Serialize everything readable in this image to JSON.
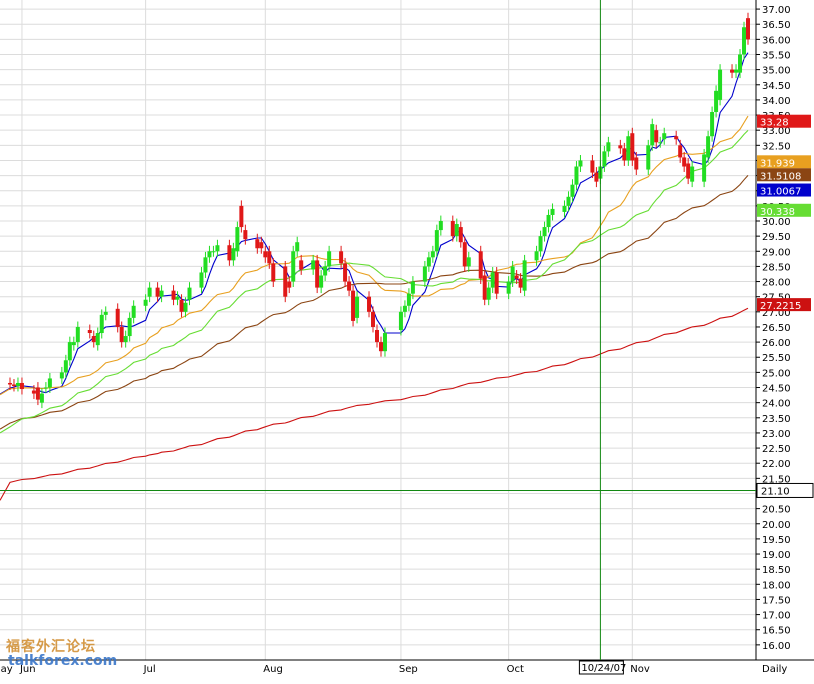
{
  "chart_data": {
    "type": "candlestick",
    "interval_label": "Daily",
    "y_axis": {
      "min": 15.5,
      "max": 37.3,
      "ticks": [
        "16.00",
        "16.50",
        "17.00",
        "17.50",
        "18.00",
        "18.50",
        "19.00",
        "19.50",
        "20.00",
        "20.50",
        "21.00",
        "21.50",
        "22.00",
        "22.50",
        "23.00",
        "23.50",
        "24.00",
        "24.50",
        "25.00",
        "25.50",
        "26.00",
        "26.50",
        "27.00",
        "27.50",
        "28.00",
        "28.50",
        "29.00",
        "29.50",
        "30.00",
        "30.50",
        "31.00",
        "31.50",
        "32.00",
        "32.50",
        "33.00",
        "33.50",
        "34.00",
        "34.50",
        "35.00",
        "35.50",
        "36.00",
        "36.50",
        "37.00"
      ]
    },
    "x_axis": {
      "start": "2007-05-28",
      "end": "2007-11-30",
      "labels": [
        {
          "text": "May",
          "date": "2007-05-25"
        },
        {
          "text": "Jun",
          "date": "2007-06-01"
        },
        {
          "text": "Jul",
          "date": "2007-07-02"
        },
        {
          "text": "Aug",
          "date": "2007-08-01"
        },
        {
          "text": "Sep",
          "date": "2007-09-04"
        },
        {
          "text": "Oct",
          "date": "2007-10-01"
        },
        {
          "text": "Nov",
          "date": "2007-11-01"
        }
      ]
    },
    "grid": true,
    "up_color": "#22dd22",
    "down_color": "#e01818",
    "crosshair": {
      "date": "2007-10-24",
      "date_label": "10/24/07",
      "price": 21.1,
      "price_label": "21.10",
      "color": "#118811"
    },
    "candles": [
      [
        "2007-05-29",
        24.65,
        24.6
      ],
      [
        "2007-05-30",
        24.6,
        24.55
      ],
      [
        "2007-05-31",
        24.55,
        24.65
      ],
      [
        "2007-06-01",
        24.65,
        24.45
      ],
      [
        "2007-06-04",
        24.4,
        24.3
      ],
      [
        "2007-06-05",
        24.5,
        24.1
      ],
      [
        "2007-06-06",
        24.0,
        24.3
      ],
      [
        "2007-06-07",
        24.5,
        24.5
      ],
      [
        "2007-06-08",
        24.5,
        24.8
      ],
      [
        "2007-06-11",
        24.8,
        25.0
      ],
      [
        "2007-06-12",
        25.0,
        25.4
      ],
      [
        "2007-06-13",
        25.4,
        26.0
      ],
      [
        "2007-06-14",
        25.9,
        26.0
      ],
      [
        "2007-06-15",
        26.0,
        26.5
      ],
      [
        "2007-06-18",
        26.4,
        26.3
      ],
      [
        "2007-06-19",
        26.2,
        26.0
      ],
      [
        "2007-06-20",
        25.9,
        26.3
      ],
      [
        "2007-06-21",
        26.3,
        26.9
      ],
      [
        "2007-06-22",
        26.9,
        27.0
      ],
      [
        "2007-06-25",
        27.1,
        26.5
      ],
      [
        "2007-06-26",
        26.5,
        26.0
      ],
      [
        "2007-06-27",
        26.0,
        26.2
      ],
      [
        "2007-06-28",
        26.2,
        26.8
      ],
      [
        "2007-06-29",
        26.8,
        27.2
      ],
      [
        "2007-07-02",
        27.2,
        27.4
      ],
      [
        "2007-07-03",
        27.5,
        27.8
      ],
      [
        "2007-07-05",
        27.8,
        27.5
      ],
      [
        "2007-07-06",
        27.5,
        27.7
      ],
      [
        "2007-07-09",
        27.7,
        27.4
      ],
      [
        "2007-07-10",
        27.4,
        27.5
      ],
      [
        "2007-07-11",
        27.4,
        27.0
      ],
      [
        "2007-07-12",
        27.0,
        27.3
      ],
      [
        "2007-07-13",
        27.4,
        27.8
      ],
      [
        "2007-07-16",
        27.8,
        28.3
      ],
      [
        "2007-07-17",
        28.3,
        28.8
      ],
      [
        "2007-07-18",
        28.8,
        29.0
      ],
      [
        "2007-07-19",
        29.0,
        29.0
      ],
      [
        "2007-07-20",
        29.0,
        29.2
      ],
      [
        "2007-07-23",
        29.2,
        28.7
      ],
      [
        "2007-07-24",
        28.7,
        29.1
      ],
      [
        "2007-07-25",
        29.0,
        29.8
      ],
      [
        "2007-07-26",
        30.5,
        29.8
      ],
      [
        "2007-07-27",
        29.7,
        29.4
      ],
      [
        "2007-07-30",
        29.4,
        29.1
      ],
      [
        "2007-07-31",
        29.3,
        29.1
      ],
      [
        "2007-08-01",
        29.0,
        28.8
      ],
      [
        "2007-08-02",
        29.0,
        28.6
      ],
      [
        "2007-08-03",
        28.6,
        28.0
      ],
      [
        "2007-08-06",
        28.5,
        27.5
      ],
      [
        "2007-08-07",
        28.0,
        27.8
      ],
      [
        "2007-08-08",
        28.0,
        29.0
      ],
      [
        "2007-08-09",
        29.0,
        29.3
      ],
      [
        "2007-08-10",
        28.7,
        28.4
      ],
      [
        "2007-08-13",
        28.4,
        28.7
      ],
      [
        "2007-08-14",
        28.7,
        27.8
      ],
      [
        "2007-08-15",
        27.8,
        28.2
      ],
      [
        "2007-08-16",
        28.2,
        28.5
      ],
      [
        "2007-08-17",
        28.5,
        29.0
      ],
      [
        "2007-08-20",
        29.0,
        28.6
      ],
      [
        "2007-08-21",
        28.6,
        28.0
      ],
      [
        "2007-08-22",
        28.0,
        27.7
      ],
      [
        "2007-08-23",
        27.7,
        26.7
      ],
      [
        "2007-08-24",
        26.8,
        27.5
      ],
      [
        "2007-08-27",
        27.5,
        27.0
      ],
      [
        "2007-08-28",
        27.0,
        26.5
      ],
      [
        "2007-08-29",
        26.4,
        26.0
      ],
      [
        "2007-08-30",
        26.0,
        25.7
      ],
      [
        "2007-08-31",
        25.7,
        26.3
      ],
      [
        "2007-09-04",
        26.4,
        27.0
      ],
      [
        "2007-09-05",
        27.0,
        27.2
      ],
      [
        "2007-09-06",
        27.2,
        27.6
      ],
      [
        "2007-09-07",
        27.6,
        28.0
      ],
      [
        "2007-09-10",
        28.0,
        28.5
      ],
      [
        "2007-09-11",
        28.5,
        28.8
      ],
      [
        "2007-09-12",
        28.8,
        29.0
      ],
      [
        "2007-09-13",
        29.0,
        29.7
      ],
      [
        "2007-09-14",
        29.7,
        30.0
      ],
      [
        "2007-09-17",
        30.0,
        29.5
      ],
      [
        "2007-09-18",
        29.5,
        29.9
      ],
      [
        "2007-09-19",
        29.8,
        29.3
      ],
      [
        "2007-09-20",
        29.3,
        28.5
      ],
      [
        "2007-09-21",
        28.5,
        28.8
      ],
      [
        "2007-09-24",
        29.0,
        28.1
      ],
      [
        "2007-09-25",
        28.2,
        27.4
      ],
      [
        "2007-09-26",
        27.4,
        27.8
      ],
      [
        "2007-09-27",
        27.8,
        28.3
      ],
      [
        "2007-09-28",
        28.3,
        27.6
      ],
      [
        "2007-10-01",
        27.6,
        28.0
      ],
      [
        "2007-10-02",
        28.0,
        28.5
      ],
      [
        "2007-10-03",
        28.2,
        28.1
      ],
      [
        "2007-10-04",
        28.1,
        27.8
      ],
      [
        "2007-10-05",
        27.7,
        28.7
      ],
      [
        "2007-10-08",
        28.7,
        29.0
      ],
      [
        "2007-10-09",
        29.0,
        29.5
      ],
      [
        "2007-10-10",
        29.5,
        29.8
      ],
      [
        "2007-10-11",
        29.8,
        30.2
      ],
      [
        "2007-10-12",
        30.2,
        30.4
      ],
      [
        "2007-10-15",
        30.3,
        30.5
      ],
      [
        "2007-10-16",
        30.5,
        30.8
      ],
      [
        "2007-10-17",
        30.8,
        31.2
      ],
      [
        "2007-10-18",
        31.2,
        31.8
      ],
      [
        "2007-10-19",
        31.8,
        32.0
      ],
      [
        "2007-10-22",
        32.0,
        31.6
      ],
      [
        "2007-10-23",
        31.6,
        31.3
      ],
      [
        "2007-10-24",
        31.4,
        31.8
      ],
      [
        "2007-10-25",
        31.8,
        32.3
      ],
      [
        "2007-10-26",
        32.3,
        32.6
      ],
      [
        "2007-10-29",
        32.5,
        32.4
      ],
      [
        "2007-10-30",
        32.4,
        32.0
      ],
      [
        "2007-10-31",
        32.0,
        32.8
      ],
      [
        "2007-11-01",
        32.9,
        32.0
      ],
      [
        "2007-11-02",
        32.1,
        31.7
      ],
      [
        "2007-11-05",
        31.7,
        32.5
      ],
      [
        "2007-11-06",
        32.5,
        33.2
      ],
      [
        "2007-11-07",
        33.0,
        32.6
      ],
      [
        "2007-11-08",
        32.6,
        32.6
      ],
      [
        "2007-11-09",
        32.7,
        32.9
      ],
      [
        "2007-11-12",
        32.8,
        32.7
      ],
      [
        "2007-11-13",
        32.5,
        32.1
      ],
      [
        "2007-11-14",
        32.1,
        31.8
      ],
      [
        "2007-11-15",
        31.9,
        31.4
      ],
      [
        "2007-11-16",
        31.3,
        31.8
      ],
      [
        "2007-11-19",
        31.3,
        32.2
      ],
      [
        "2007-11-20",
        32.1,
        32.8
      ],
      [
        "2007-11-21",
        32.8,
        33.6
      ],
      [
        "2007-11-22",
        33.6,
        34.3
      ],
      [
        "2007-11-23",
        34.0,
        35.0
      ],
      [
        "2007-11-26",
        35.0,
        34.9
      ],
      [
        "2007-11-27",
        34.9,
        35.0
      ],
      [
        "2007-11-28",
        34.9,
        35.5
      ],
      [
        "2007-11-29",
        35.5,
        36.4
      ],
      [
        "2007-11-30",
        36.7,
        36.0
      ]
    ],
    "moving_averages": [
      {
        "color": "#0000cc",
        "value": 31.0067,
        "label": "31.0067"
      },
      {
        "color": "#e8a020",
        "value": 31.939,
        "label": "31.939"
      },
      {
        "color": "#8b4513",
        "value": 31.5108,
        "label": "31.5108"
      },
      {
        "color": "#66dd33",
        "value": 30.338,
        "label": "30.338"
      },
      {
        "color": "#cc1111",
        "value": 27.2215,
        "label": "27.2215"
      }
    ],
    "last_price": {
      "value": 33.28,
      "label": "33.28",
      "color": "#e01818"
    }
  }
}
